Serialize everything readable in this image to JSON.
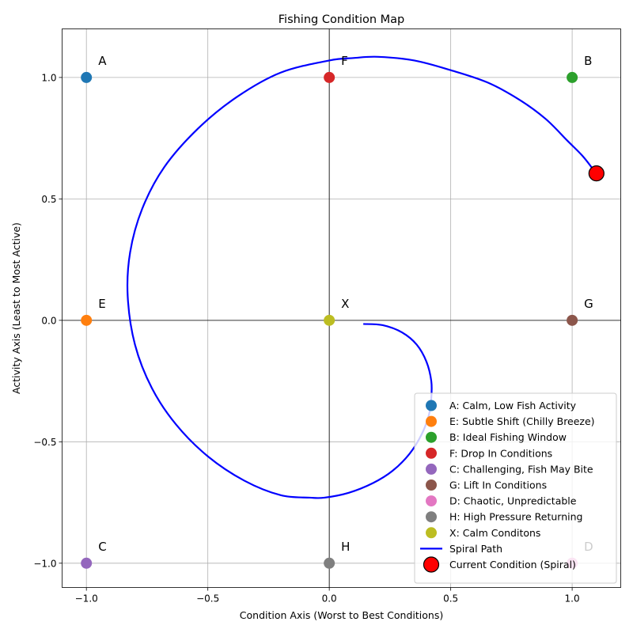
{
  "chart_data": {
    "type": "scatter",
    "title": "Fishing Condition Map",
    "xlabel": "Condition Axis (Worst to Best Conditions)",
    "ylabel": "Activity Axis (Least to Most Active)",
    "xlim": [
      -1.1,
      1.2
    ],
    "ylim": [
      -1.1,
      1.2
    ],
    "xticks": [
      -1.0,
      -0.5,
      0.0,
      0.5,
      1.0
    ],
    "xtick_labels": [
      "−1.0",
      "−0.5",
      "0.0",
      "0.5",
      "1.0"
    ],
    "yticks": [
      -1.0,
      -0.5,
      0.0,
      0.5,
      1.0
    ],
    "ytick_labels": [
      "−1.0",
      "−0.5",
      "0.0",
      "0.5",
      "1.0"
    ],
    "grid": true,
    "legend_position": "bottom-right",
    "points": [
      {
        "id": "A",
        "x": -1,
        "y": 1,
        "color": "#1f77b4",
        "legend": "A: Calm, Low Fish Activity"
      },
      {
        "id": "E",
        "x": -1,
        "y": 0,
        "color": "#ff7f0e",
        "legend": "E: Subtle Shift (Chilly Breeze)"
      },
      {
        "id": "B",
        "x": 1,
        "y": 1,
        "color": "#2ca02c",
        "legend": "B: Ideal Fishing Window"
      },
      {
        "id": "F",
        "x": 0,
        "y": 1,
        "color": "#d62728",
        "legend": "F: Drop In Conditions"
      },
      {
        "id": "C",
        "x": -1,
        "y": -1,
        "color": "#9467bd",
        "legend": "C: Challenging, Fish May Bite"
      },
      {
        "id": "G",
        "x": 1,
        "y": 0,
        "color": "#8c564b",
        "legend": "G: Lift In Conditions"
      },
      {
        "id": "D",
        "x": 1,
        "y": -1,
        "color": "#e377c2",
        "legend": "D: Chaotic, Unpredictable"
      },
      {
        "id": "H",
        "x": 0,
        "y": -1,
        "color": "#7f7f7f",
        "legend": "H: High Pressure Returning"
      },
      {
        "id": "X",
        "x": 0,
        "y": 0,
        "color": "#bcbd22",
        "legend": "X: Calm Conditons"
      }
    ],
    "spiral": {
      "legend": "Spiral Path",
      "color": "#0000ff",
      "points": [
        [
          0.14,
          -0.015
        ],
        [
          0.22,
          -0.02
        ],
        [
          0.3,
          -0.05
        ],
        [
          0.36,
          -0.1
        ],
        [
          0.4,
          -0.17
        ],
        [
          0.42,
          -0.25
        ],
        [
          0.42,
          -0.32
        ],
        [
          0.41,
          -0.39
        ],
        [
          0.38,
          -0.47
        ],
        [
          0.33,
          -0.55
        ],
        [
          0.26,
          -0.62
        ],
        [
          0.18,
          -0.67
        ],
        [
          0.08,
          -0.71
        ],
        [
          -0.02,
          -0.73
        ],
        [
          -0.08,
          -0.73
        ],
        [
          -0.2,
          -0.72
        ],
        [
          -0.35,
          -0.66
        ],
        [
          -0.5,
          -0.56
        ],
        [
          -0.63,
          -0.43
        ],
        [
          -0.73,
          -0.28
        ],
        [
          -0.8,
          -0.1
        ],
        [
          -0.83,
          0.1
        ],
        [
          -0.82,
          0.28
        ],
        [
          -0.77,
          0.46
        ],
        [
          -0.68,
          0.63
        ],
        [
          -0.54,
          0.79
        ],
        [
          -0.38,
          0.92
        ],
        [
          -0.2,
          1.02
        ],
        [
          0.0,
          1.07
        ],
        [
          0.1,
          1.08
        ],
        [
          0.2,
          1.085
        ],
        [
          0.35,
          1.07
        ],
        [
          0.5,
          1.03
        ],
        [
          0.65,
          0.98
        ],
        [
          0.78,
          0.91
        ],
        [
          0.89,
          0.83
        ],
        [
          0.98,
          0.74
        ],
        [
          1.04,
          0.68
        ],
        [
          1.08,
          0.63
        ],
        [
          1.1,
          0.6
        ]
      ]
    },
    "current": {
      "legend": "Current Condition (Spiral)",
      "x": 1.1,
      "y": 0.605,
      "color": "#ff0000"
    }
  }
}
